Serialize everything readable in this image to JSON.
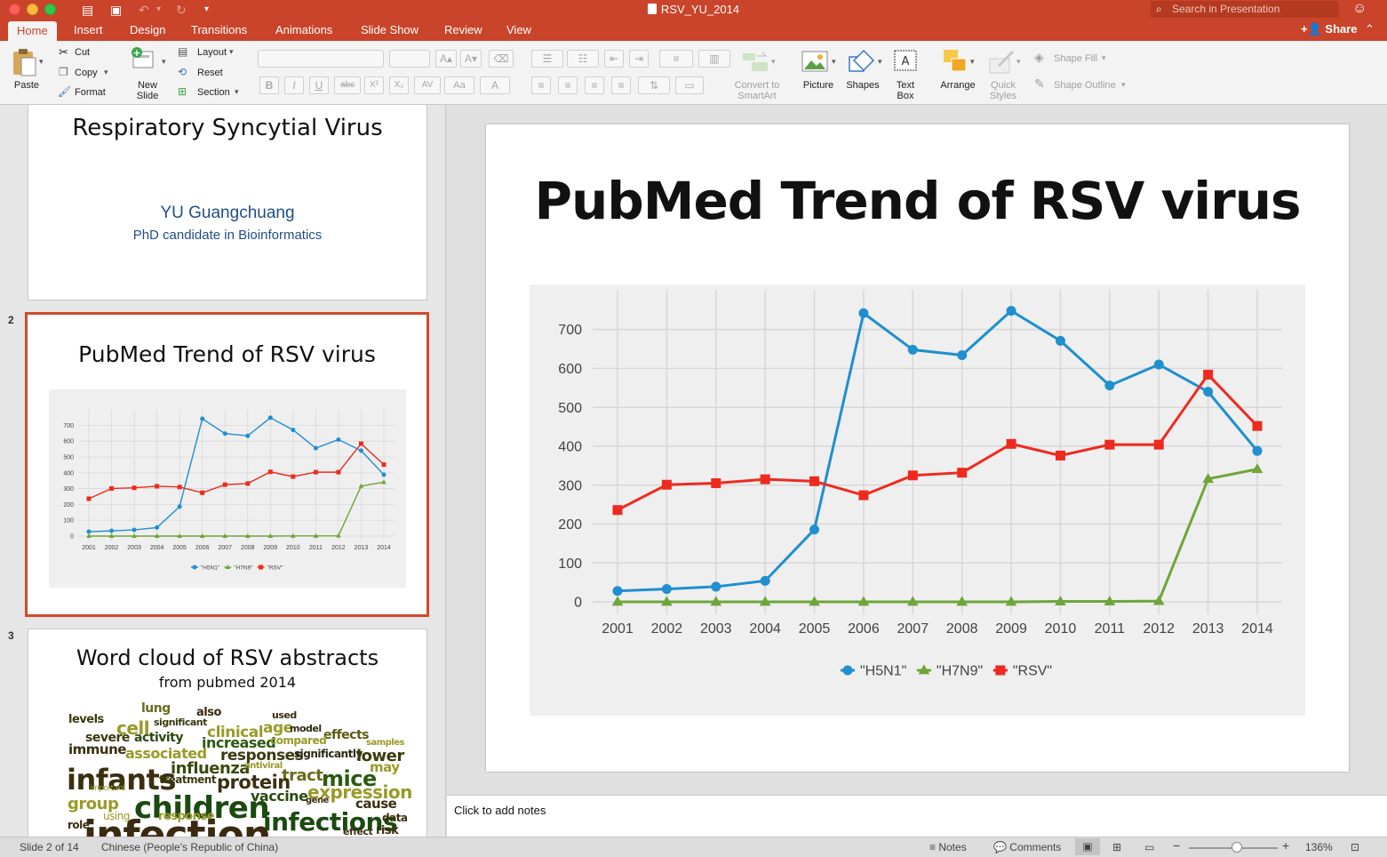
{
  "window": {
    "title": "RSV_YU_2014",
    "search_placeholder": "Search in Presentation"
  },
  "tabs": [
    "Home",
    "Insert",
    "Design",
    "Transitions",
    "Animations",
    "Slide Show",
    "Review",
    "View"
  ],
  "active_tab": "Home",
  "share_label": "Share",
  "ribbon": {
    "paste": "Paste",
    "cut": "Cut",
    "copy": "Copy",
    "format": "Format",
    "new_slide_1": "New",
    "new_slide_2": "Slide",
    "layout": "Layout",
    "reset": "Reset",
    "section": "Section",
    "convert_1": "Convert to",
    "convert_2": "SmartArt",
    "picture": "Picture",
    "shapes": "Shapes",
    "textbox_1": "Text",
    "textbox_2": "Box",
    "arrange": "Arrange",
    "quick_1": "Quick",
    "quick_2": "Styles",
    "shape_fill": "Shape Fill",
    "shape_outline": "Shape Outline",
    "fmt_buttons": [
      "B",
      "I",
      "U",
      "abc",
      "X²",
      "X₂",
      "AV",
      "Aa",
      "A"
    ]
  },
  "thumbnails": {
    "slide1": {
      "title": "Respiratory Syncytial Virus",
      "author": "YU Guangchuang",
      "role": "PhD candidate in Bioinformatics"
    },
    "slide2": {
      "number": "2",
      "title": "PubMed Trend of RSV virus"
    },
    "slide3": {
      "number": "3",
      "title": "Word cloud of RSV abstracts",
      "subtitle": "from pubmed 2014",
      "words": [
        {
          "t": "levels",
          "x": 76,
          "y": 812,
          "s": 13,
          "c": "#3a3a10",
          "b": true
        },
        {
          "t": "lung",
          "x": 158,
          "y": 800,
          "s": 14,
          "c": "#6b6b1e",
          "b": true
        },
        {
          "t": "also",
          "x": 220,
          "y": 804,
          "s": 13,
          "c": "#3b2a10",
          "b": true
        },
        {
          "t": "used",
          "x": 305,
          "y": 807,
          "s": 11,
          "c": "#3b2a10",
          "b": true
        },
        {
          "t": "cell",
          "x": 130,
          "y": 821,
          "s": 20,
          "c": "#9a9a2a",
          "b": true
        },
        {
          "t": "significant",
          "x": 172,
          "y": 815,
          "s": 11,
          "c": "#3a3a10",
          "b": true
        },
        {
          "t": "clinical",
          "x": 232,
          "y": 826,
          "s": 17,
          "c": "#9a9a2a",
          "b": true
        },
        {
          "t": "age",
          "x": 295,
          "y": 821,
          "s": 17,
          "c": "#9a9a2a",
          "b": true
        },
        {
          "t": "model",
          "x": 325,
          "y": 822,
          "s": 11,
          "c": "#2a2a10",
          "b": true
        },
        {
          "t": "effects",
          "x": 363,
          "y": 830,
          "s": 14,
          "c": "#5a5a12",
          "b": true
        },
        {
          "t": "severe",
          "x": 95,
          "y": 833,
          "s": 14,
          "c": "#3a3a10",
          "b": true
        },
        {
          "t": "activity",
          "x": 150,
          "y": 833,
          "s": 14,
          "c": "#2a4a10",
          "b": true
        },
        {
          "t": "increased",
          "x": 226,
          "y": 838,
          "s": 16,
          "c": "#2a5a10",
          "b": true
        },
        {
          "t": "compared",
          "x": 303,
          "y": 836,
          "s": 12,
          "c": "#9a9a2a",
          "b": true
        },
        {
          "t": "samples",
          "x": 411,
          "y": 838,
          "s": 10,
          "c": "#9a9a2a",
          "b": true
        },
        {
          "t": "immune",
          "x": 76,
          "y": 845,
          "s": 15,
          "c": "#3a3010",
          "b": true
        },
        {
          "t": "associated",
          "x": 140,
          "y": 850,
          "s": 16,
          "c": "#9a9a2a",
          "b": true
        },
        {
          "t": "responses",
          "x": 247,
          "y": 852,
          "s": 17,
          "c": "#3a3a10",
          "b": true
        },
        {
          "t": "significantly",
          "x": 330,
          "y": 851,
          "s": 12,
          "c": "#2a2a10",
          "b": true
        },
        {
          "t": "lower",
          "x": 400,
          "y": 853,
          "s": 18,
          "c": "#3a3a10",
          "b": true
        },
        {
          "t": "infants",
          "x": 74,
          "y": 879,
          "s": 32,
          "c": "#3a3010",
          "b": true
        },
        {
          "t": "influenza",
          "x": 191,
          "y": 867,
          "s": 18,
          "c": "#3a4a10",
          "b": true
        },
        {
          "t": "antiviral",
          "x": 274,
          "y": 864,
          "s": 10,
          "c": "#9a9a2a",
          "b": true
        },
        {
          "t": "may",
          "x": 415,
          "y": 865,
          "s": 15,
          "c": "#9a9a2a",
          "b": true
        },
        {
          "t": "tract",
          "x": 316,
          "y": 875,
          "s": 18,
          "c": "#6b6b1e",
          "b": true
        },
        {
          "t": "mice",
          "x": 361,
          "y": 878,
          "s": 24,
          "c": "#2a5a10",
          "b": true
        },
        {
          "t": "treatment",
          "x": 178,
          "y": 880,
          "s": 12,
          "c": "#3a3a10",
          "b": true
        },
        {
          "t": "protein",
          "x": 243,
          "y": 883,
          "s": 21,
          "c": "#3a3010",
          "b": true
        },
        {
          "t": "important",
          "x": 100,
          "y": 890,
          "s": 9,
          "c": "#9a9a2a",
          "b": false
        },
        {
          "t": "expression",
          "x": 345,
          "y": 893,
          "s": 20,
          "c": "#9a9a2a",
          "b": true
        },
        {
          "t": "children",
          "x": 150,
          "y": 911,
          "s": 34,
          "c": "#1a4a10",
          "b": true
        },
        {
          "t": "vaccine",
          "x": 281,
          "y": 898,
          "s": 16,
          "c": "#2a4a10",
          "b": true
        },
        {
          "t": "group",
          "x": 75,
          "y": 907,
          "s": 18,
          "c": "#9a9a2a",
          "b": true
        },
        {
          "t": "gene",
          "x": 343,
          "y": 903,
          "s": 10,
          "c": "#3a3010",
          "b": true
        },
        {
          "t": "cause",
          "x": 399,
          "y": 906,
          "s": 15,
          "c": "#3a3010",
          "b": true
        },
        {
          "t": "infections",
          "x": 295,
          "y": 926,
          "s": 28,
          "c": "#1a4a10",
          "b": true
        },
        {
          "t": "using",
          "x": 115,
          "y": 921,
          "s": 12,
          "c": "#9a9a2a",
          "b": false
        },
        {
          "t": "response",
          "x": 177,
          "y": 921,
          "s": 13,
          "c": "#9a9a2a",
          "b": true
        },
        {
          "t": "data",
          "x": 429,
          "y": 923,
          "s": 12,
          "c": "#3a3010",
          "b": true
        },
        {
          "t": "role",
          "x": 75,
          "y": 931,
          "s": 12,
          "c": "#3a3010",
          "b": true
        },
        {
          "t": "effect",
          "x": 385,
          "y": 938,
          "s": 11,
          "c": "#3a3010",
          "b": true
        },
        {
          "t": "risk",
          "x": 422,
          "y": 937,
          "s": 13,
          "c": "#3a3010",
          "b": true
        }
      ]
    }
  },
  "main_slide": {
    "title": "PubMed Trend of RSV virus"
  },
  "chart_data": {
    "type": "line",
    "x": [
      2001,
      2002,
      2003,
      2004,
      2005,
      2006,
      2007,
      2008,
      2009,
      2010,
      2011,
      2012,
      2013,
      2014
    ],
    "series": [
      {
        "name": "\"H5N1\"",
        "color": "#1f8fd0",
        "marker": "circle",
        "values": [
          28,
          33,
          39,
          54,
          186,
          742,
          648,
          634,
          748,
          671,
          556,
          610,
          540,
          388
        ]
      },
      {
        "name": "\"H7N9\"",
        "color": "#6fa53a",
        "marker": "triangle",
        "values": [
          0,
          0,
          0,
          0,
          0,
          0,
          0,
          0,
          0,
          1,
          1,
          2,
          316,
          341
        ]
      },
      {
        "name": "\"RSV\"",
        "color": "#ee2a1f",
        "marker": "square",
        "values": [
          236,
          301,
          305,
          315,
          310,
          274,
          325,
          332,
          406,
          376,
          404,
          404,
          584,
          452
        ]
      }
    ],
    "yticks": [
      0,
      100,
      200,
      300,
      400,
      500,
      600,
      700
    ],
    "ylim": [
      0,
      770
    ],
    "grid": true,
    "legend": "bottom"
  },
  "notes_placeholder": "Click to add notes",
  "status": {
    "slide_info": "Slide 2 of 14",
    "language": "Chinese (People's Republic of China)",
    "notes": "Notes",
    "comments": "Comments",
    "zoom": "136%"
  }
}
